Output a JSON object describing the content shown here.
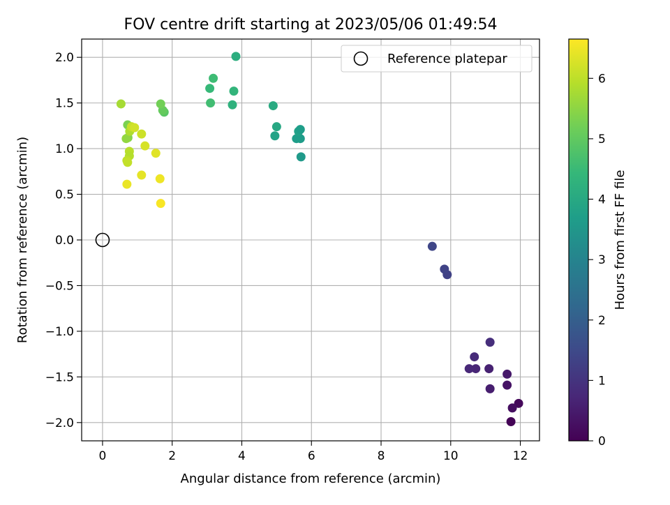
{
  "chart_data": {
    "type": "scatter",
    "title": "FOV centre drift starting at 2023/05/06 01:49:54",
    "xlabel": "Angular distance from reference (arcmin)",
    "ylabel": "Rotation from reference (arcmin)",
    "xlim": [
      -0.6,
      12.55
    ],
    "ylim": [
      -2.2,
      2.2
    ],
    "xticks": [
      0,
      2,
      4,
      6,
      8,
      10,
      12
    ],
    "yticks": [
      2.0,
      1.5,
      1.0,
      0.5,
      0.0,
      -0.5,
      -1.0,
      -1.5,
      -2.0
    ],
    "xtick_labels": [
      "0",
      "2",
      "4",
      "6",
      "8",
      "10",
      "12"
    ],
    "ytick_labels": [
      "2.0",
      "1.5",
      "1.0",
      "0.5",
      "0.0",
      "−0.5",
      "−1.0",
      "−1.5",
      "−2.0"
    ],
    "grid": true,
    "legend": {
      "placement": "top-right",
      "entries": [
        "Reference platepar"
      ]
    },
    "reference_point": {
      "x": 0.0,
      "y": 0.0,
      "label": "Reference platepar"
    },
    "colorbar": {
      "label": "Hours from first FF file",
      "colormap": "viridis",
      "range": [
        0,
        6.65
      ],
      "ticks": [
        0,
        1,
        2,
        3,
        4,
        5,
        6
      ],
      "tick_labels": [
        "0",
        "1",
        "2",
        "3",
        "4",
        "5",
        "6"
      ],
      "colors": [
        "#440154",
        "#482878",
        "#3e4989",
        "#31688e",
        "#26828e",
        "#1f9e89",
        "#35b779",
        "#6ece58",
        "#b5de2b",
        "#fde725"
      ]
    },
    "points": [
      {
        "x": 11.73,
        "y": -1.99,
        "h": 0.05
      },
      {
        "x": 11.95,
        "y": -1.79,
        "h": 0.15
      },
      {
        "x": 11.77,
        "y": -1.84,
        "h": 0.25
      },
      {
        "x": 11.62,
        "y": -1.59,
        "h": 0.35
      },
      {
        "x": 11.62,
        "y": -1.47,
        "h": 0.45
      },
      {
        "x": 11.13,
        "y": -1.63,
        "h": 0.55
      },
      {
        "x": 11.1,
        "y": -1.41,
        "h": 0.62
      },
      {
        "x": 10.72,
        "y": -1.41,
        "h": 0.7
      },
      {
        "x": 10.53,
        "y": -1.41,
        "h": 0.75
      },
      {
        "x": 10.68,
        "y": -1.28,
        "h": 0.8
      },
      {
        "x": 11.13,
        "y": -1.12,
        "h": 0.88
      },
      {
        "x": 9.9,
        "y": -0.38,
        "h": 1.3
      },
      {
        "x": 9.82,
        "y": -0.32,
        "h": 1.35
      },
      {
        "x": 9.47,
        "y": -0.07,
        "h": 1.4
      },
      {
        "x": 5.7,
        "y": 0.91,
        "h": 3.6
      },
      {
        "x": 5.68,
        "y": 1.11,
        "h": 3.65
      },
      {
        "x": 5.57,
        "y": 1.11,
        "h": 3.7
      },
      {
        "x": 5.63,
        "y": 1.19,
        "h": 3.8
      },
      {
        "x": 5.68,
        "y": 1.21,
        "h": 3.7
      },
      {
        "x": 4.95,
        "y": 1.14,
        "h": 3.85
      },
      {
        "x": 5.0,
        "y": 1.24,
        "h": 3.95
      },
      {
        "x": 4.9,
        "y": 1.47,
        "h": 4.05
      },
      {
        "x": 3.73,
        "y": 1.48,
        "h": 4.25
      },
      {
        "x": 3.08,
        "y": 1.66,
        "h": 4.45
      },
      {
        "x": 3.1,
        "y": 1.5,
        "h": 4.6
      },
      {
        "x": 3.77,
        "y": 1.63,
        "h": 4.35
      },
      {
        "x": 3.18,
        "y": 1.77,
        "h": 4.55
      },
      {
        "x": 3.83,
        "y": 2.01,
        "h": 4.15
      },
      {
        "x": 1.77,
        "y": 1.4,
        "h": 4.9
      },
      {
        "x": 1.73,
        "y": 1.42,
        "h": 5.05
      },
      {
        "x": 1.67,
        "y": 1.49,
        "h": 5.2
      },
      {
        "x": 0.53,
        "y": 1.49,
        "h": 5.75
      },
      {
        "x": 0.72,
        "y": 1.26,
        "h": 5.3
      },
      {
        "x": 0.73,
        "y": 1.12,
        "h": 5.4
      },
      {
        "x": 0.68,
        "y": 1.11,
        "h": 5.55
      },
      {
        "x": 0.78,
        "y": 1.19,
        "h": 5.85
      },
      {
        "x": 0.83,
        "y": 1.24,
        "h": 6.1
      },
      {
        "x": 0.92,
        "y": 1.23,
        "h": 6.2
      },
      {
        "x": 1.12,
        "y": 1.16,
        "h": 6.15
      },
      {
        "x": 0.77,
        "y": 0.97,
        "h": 5.95
      },
      {
        "x": 0.77,
        "y": 0.92,
        "h": 5.9
      },
      {
        "x": 0.7,
        "y": 0.87,
        "h": 6.0
      },
      {
        "x": 0.72,
        "y": 0.85,
        "h": 6.05
      },
      {
        "x": 1.22,
        "y": 1.03,
        "h": 6.25
      },
      {
        "x": 1.53,
        "y": 0.95,
        "h": 6.35
      },
      {
        "x": 1.12,
        "y": 0.71,
        "h": 6.4
      },
      {
        "x": 1.65,
        "y": 0.67,
        "h": 6.5
      },
      {
        "x": 0.7,
        "y": 0.61,
        "h": 6.45
      },
      {
        "x": 1.67,
        "y": 0.4,
        "h": 6.6
      }
    ]
  }
}
